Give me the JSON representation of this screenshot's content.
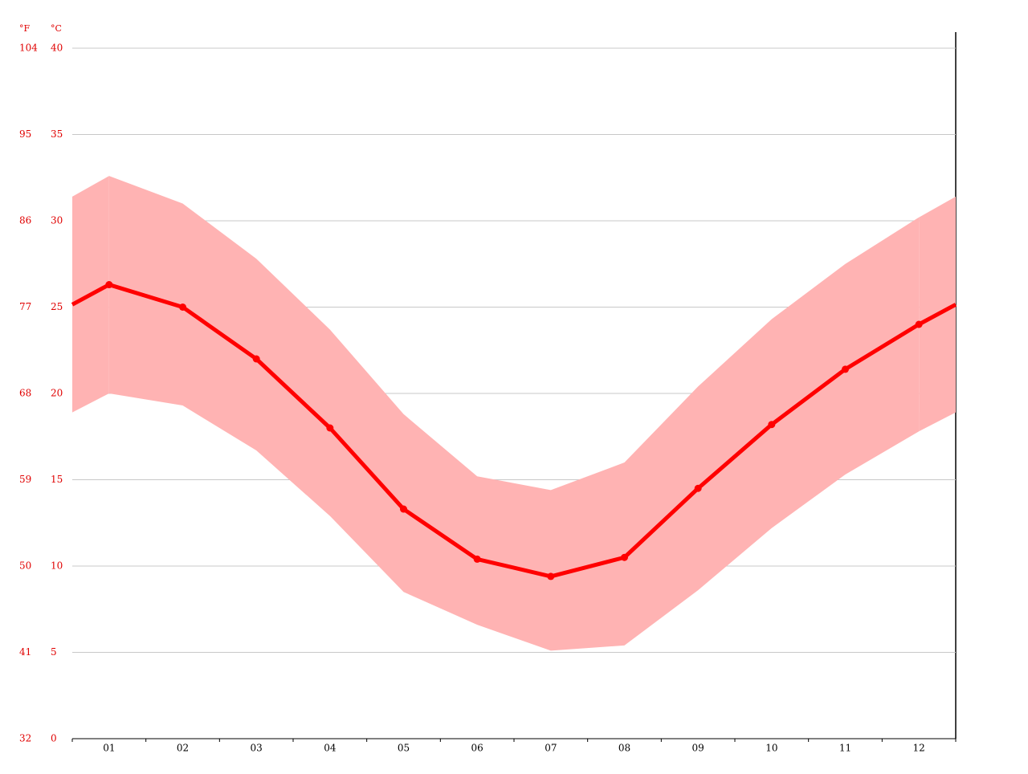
{
  "chart_data": {
    "type": "line",
    "y2_unit": "°F",
    "y_unit": "°C",
    "categories": [
      "01",
      "02",
      "03",
      "04",
      "05",
      "06",
      "07",
      "08",
      "09",
      "10",
      "11",
      "12"
    ],
    "series": [
      {
        "color": "#ff0000",
        "values": [
          26.3,
          25.0,
          22.0,
          18.0,
          13.3,
          10.4,
          9.4,
          10.5,
          14.5,
          18.2,
          21.4,
          24.0
        ]
      }
    ],
    "band": {
      "color": "#ffb3b3",
      "high": [
        32.6,
        31.0,
        27.8,
        23.7,
        18.8,
        15.2,
        14.4,
        16.0,
        20.4,
        24.3,
        27.5,
        30.2
      ],
      "low": [
        20.0,
        19.3,
        16.7,
        12.9,
        8.5,
        6.6,
        5.1,
        5.4,
        8.6,
        12.2,
        15.3,
        17.8
      ]
    },
    "ylim": [
      0,
      40
    ],
    "yticks": [
      0,
      5,
      10,
      15,
      20,
      25,
      30,
      35,
      40
    ],
    "y2lim": [
      32,
      104
    ],
    "y2ticks": [
      32,
      41,
      50,
      59,
      68,
      77,
      86,
      95,
      104
    ],
    "grid": true
  }
}
